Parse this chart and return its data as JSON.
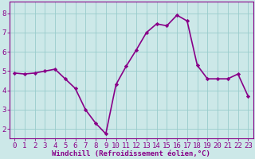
{
  "x": [
    0,
    1,
    2,
    3,
    4,
    5,
    6,
    7,
    8,
    9,
    10,
    11,
    12,
    13,
    14,
    15,
    16,
    17,
    18,
    19,
    20,
    21,
    22,
    23
  ],
  "y": [
    4.9,
    4.85,
    4.9,
    5.0,
    5.1,
    4.6,
    4.1,
    3.0,
    2.3,
    1.75,
    4.3,
    5.25,
    6.1,
    7.0,
    7.45,
    7.35,
    7.9,
    7.6,
    5.3,
    4.6,
    4.6,
    4.6,
    4.85,
    3.7
  ],
  "line_color": "#880088",
  "marker": "D",
  "marker_size": 2.2,
  "bg_color": "#cce8e8",
  "grid_color": "#99cccc",
  "xlabel": "Windchill (Refroidissement éolien,°C)",
  "ylim": [
    1.5,
    8.6
  ],
  "xlim": [
    -0.5,
    23.5
  ],
  "yticks": [
    2,
    3,
    4,
    5,
    6,
    7,
    8
  ],
  "xticks": [
    0,
    1,
    2,
    3,
    4,
    5,
    6,
    7,
    8,
    9,
    10,
    11,
    12,
    13,
    14,
    15,
    16,
    17,
    18,
    19,
    20,
    21,
    22,
    23
  ],
  "tick_color": "#880088",
  "label_color": "#880088",
  "spine_color": "#880088",
  "xlabel_fontsize": 6.5,
  "tick_fontsize": 6.5,
  "line_width": 1.2
}
